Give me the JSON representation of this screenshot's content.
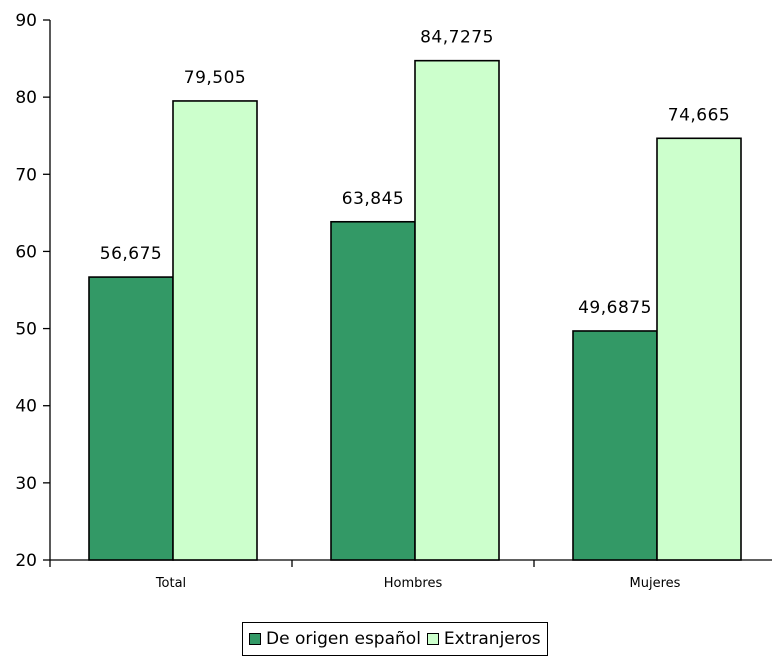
{
  "chart_data": {
    "type": "bar",
    "categories": [
      "Total",
      "Hombres",
      "Mujeres"
    ],
    "series": [
      {
        "name": "De origen español",
        "values": [
          56.675,
          63.845,
          49.6875
        ],
        "labels": [
          "56,675",
          "63,845",
          "49,6875"
        ],
        "color": "#339966"
      },
      {
        "name": "Extranjeros",
        "values": [
          79.505,
          84.7275,
          74.665
        ],
        "labels": [
          "79,505",
          "84,7275",
          "74,665"
        ],
        "color": "#ccffcc"
      }
    ],
    "ylim": [
      20,
      90
    ],
    "yticks": [
      20,
      30,
      40,
      50,
      60,
      70,
      80,
      90
    ],
    "title": "",
    "xlabel": "",
    "ylabel": "",
    "grid": false,
    "legend_position": "bottom"
  }
}
